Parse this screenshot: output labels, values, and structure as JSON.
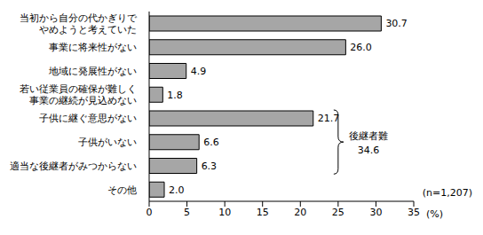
{
  "chart_data": {
    "type": "bar",
    "orientation": "horizontal",
    "categories": [
      "当初から自分の代かぎりで\nやめようと考えていた",
      "事業に将来性がない",
      "地域に発展性がない",
      "若い従業員の確保が難しく\n事業の継続が見込めない",
      "子供に継ぐ意思がない",
      "子供がいない",
      "適当な後継者がみつからない",
      "その他"
    ],
    "values": [
      30.7,
      26.0,
      4.9,
      1.8,
      21.7,
      6.6,
      6.3,
      2.0
    ],
    "value_labels": [
      "30.7",
      "26.0",
      "4.9",
      "1.8",
      "21.7",
      "6.6",
      "6.3",
      "2.0"
    ],
    "color": "#a6a6a6",
    "xlim": [
      0,
      35
    ],
    "xticks": [
      0,
      5,
      10,
      15,
      20,
      25,
      30,
      35
    ],
    "xlabel": "(%)",
    "data_labels": true,
    "grid": false,
    "annotations": [
      {
        "text": "後継者難",
        "value": 34.6,
        "from": "子供に継ぐ意思がない",
        "to": "適当な後継者がみつからない"
      },
      {
        "text": "(n=1,207)"
      }
    ]
  }
}
